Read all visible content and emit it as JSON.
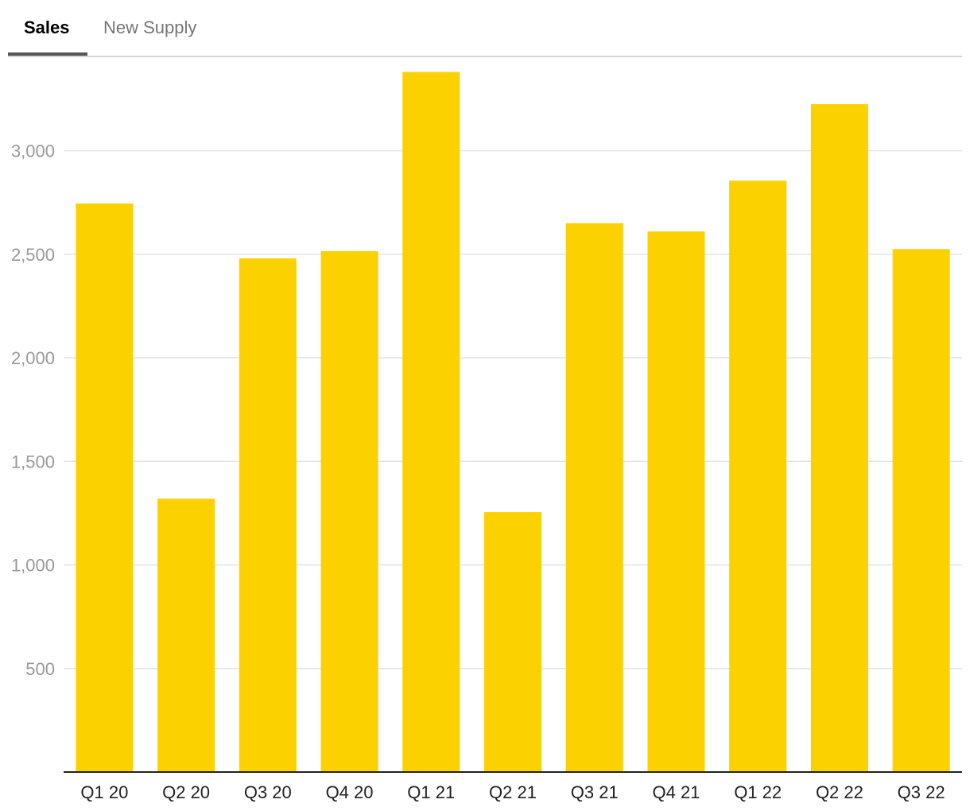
{
  "tabs": [
    {
      "label": "Sales",
      "active": true
    },
    {
      "label": "New Supply",
      "active": false
    }
  ],
  "chart_data": {
    "type": "bar",
    "categories": [
      "Q1 20",
      "Q2 20",
      "Q3 20",
      "Q4 20",
      "Q1 21",
      "Q2 21",
      "Q3 21",
      "Q4 21",
      "Q1 22",
      "Q2 22",
      "Q3 22"
    ],
    "values": [
      2745,
      1320,
      2480,
      2515,
      3380,
      1255,
      2650,
      2610,
      2855,
      3225,
      2525
    ],
    "yticks": [
      500,
      1000,
      1500,
      2000,
      2500,
      3000
    ],
    "ytick_labels": [
      "500",
      "1,000",
      "1,500",
      "2,000",
      "2,500",
      "3,000"
    ],
    "ylim": [
      0,
      3600
    ],
    "grid": true,
    "bar_color": "#FCD100",
    "title": "",
    "xlabel": "",
    "ylabel": ""
  }
}
